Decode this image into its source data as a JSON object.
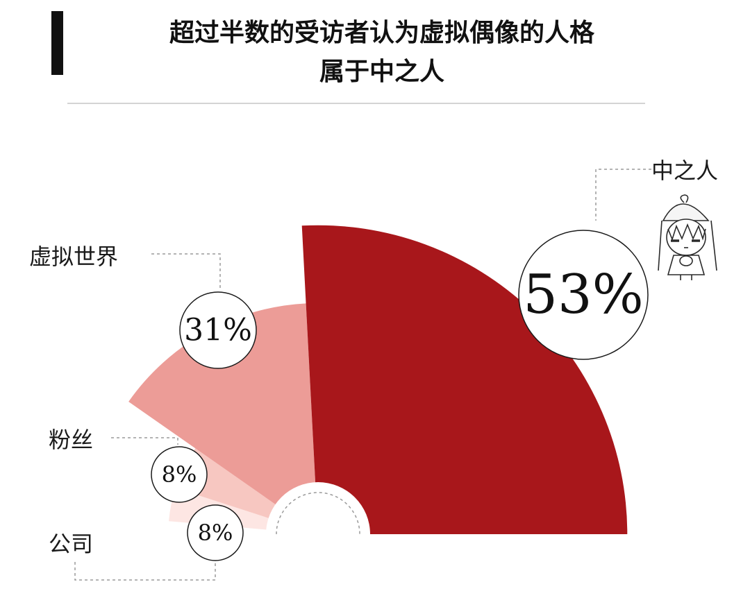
{
  "title": {
    "line1": "超过半数的受访者认为虚拟偶像的人格",
    "line2": "属于中之人"
  },
  "chart_data": {
    "type": "pie",
    "variant": "rose-quarter",
    "title": "超过半数的受访者认为虚拟偶像的人格属于中之人",
    "categories": [
      "中之人",
      "虚拟世界",
      "粉丝",
      "公司"
    ],
    "values": [
      53,
      31,
      8,
      8
    ],
    "labels": [
      "53%",
      "31%",
      "8%",
      "8%"
    ],
    "colors": [
      "#a8171b",
      "#ec9c97",
      "#f7c7c1",
      "#fde6e3"
    ]
  }
}
